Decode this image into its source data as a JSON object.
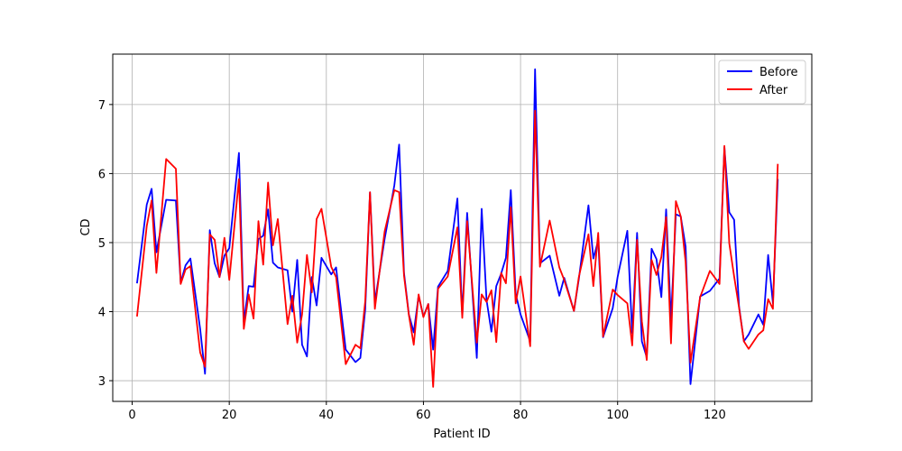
{
  "chart_data": {
    "type": "line",
    "title": "",
    "xlabel": "Patient ID",
    "ylabel": "CD",
    "xlim": [
      -4,
      140
    ],
    "ylim": [
      2.7,
      7.73
    ],
    "xticks": [
      0,
      20,
      40,
      60,
      80,
      100,
      120
    ],
    "yticks": [
      3,
      4,
      5,
      6,
      7
    ],
    "grid": true,
    "legend_position": "top-right",
    "x": [
      1,
      3,
      4,
      5,
      7,
      9,
      10,
      11,
      12,
      14,
      15,
      16,
      17,
      18,
      19,
      20,
      22,
      23,
      24,
      25,
      26,
      27,
      28,
      29,
      30,
      32,
      33,
      34,
      35,
      36,
      37,
      38,
      39,
      41,
      42,
      44,
      46,
      47,
      48,
      49,
      50,
      52,
      54,
      55,
      56,
      57,
      58,
      59,
      60,
      61,
      62,
      63,
      65,
      67,
      68,
      69,
      71,
      72,
      73,
      74,
      75,
      76,
      77,
      78,
      79,
      80,
      82,
      83,
      84,
      86,
      88,
      89,
      91,
      92,
      94,
      95,
      96,
      97,
      99,
      100,
      102,
      103,
      104,
      105,
      106,
      107,
      108,
      109,
      110,
      111,
      112,
      113,
      114,
      115,
      117,
      119,
      121,
      122,
      123,
      124,
      125,
      126,
      127,
      129,
      130,
      131,
      132,
      133
    ],
    "series": [
      {
        "name": "Before",
        "color": "#0000ff",
        "values": [
          4.41,
          5.55,
          5.78,
          4.86,
          5.62,
          5.61,
          4.42,
          4.67,
          4.77,
          3.75,
          3.1,
          5.18,
          4.7,
          4.5,
          4.81,
          4.92,
          6.3,
          3.85,
          4.37,
          4.36,
          5.05,
          5.1,
          5.48,
          4.71,
          4.64,
          4.6,
          4.0,
          4.75,
          3.52,
          3.35,
          4.5,
          4.09,
          4.78,
          4.54,
          4.64,
          3.45,
          3.27,
          3.33,
          4.03,
          5.73,
          4.14,
          5.05,
          5.83,
          6.42,
          4.56,
          3.96,
          3.7,
          4.23,
          3.93,
          4.11,
          3.45,
          4.36,
          4.59,
          5.64,
          3.95,
          5.43,
          3.33,
          5.49,
          4.17,
          3.71,
          4.37,
          4.55,
          4.78,
          5.76,
          4.26,
          3.96,
          3.57,
          7.51,
          4.7,
          4.81,
          4.23,
          4.49,
          4.01,
          4.47,
          5.54,
          4.77,
          5.03,
          3.63,
          4.05,
          4.5,
          5.17,
          3.69,
          5.14,
          3.57,
          3.34,
          4.91,
          4.76,
          4.21,
          5.48,
          3.88,
          5.41,
          5.38,
          4.94,
          2.95,
          4.22,
          4.3,
          4.48,
          6.38,
          5.44,
          5.33,
          4.08,
          3.57,
          3.67,
          3.96,
          3.81,
          4.82,
          4.12,
          5.92
        ]
      },
      {
        "name": "After",
        "color": "#ff0000",
        "values": [
          3.93,
          5.24,
          5.61,
          4.56,
          6.21,
          6.07,
          4.4,
          4.61,
          4.66,
          3.41,
          3.2,
          5.12,
          5.04,
          4.5,
          5.07,
          4.46,
          5.92,
          3.75,
          4.25,
          3.9,
          5.31,
          4.68,
          5.87,
          4.96,
          5.34,
          3.82,
          4.23,
          3.55,
          3.96,
          4.82,
          4.28,
          5.34,
          5.49,
          4.65,
          4.5,
          3.24,
          3.52,
          3.47,
          4.15,
          5.73,
          4.04,
          5.16,
          5.76,
          5.73,
          4.52,
          3.95,
          3.52,
          4.25,
          3.92,
          4.11,
          2.91,
          4.33,
          4.51,
          5.22,
          3.91,
          5.31,
          3.55,
          4.25,
          4.14,
          4.31,
          3.56,
          4.56,
          4.41,
          5.51,
          4.12,
          4.51,
          3.5,
          6.91,
          4.65,
          5.32,
          4.64,
          4.46,
          4.01,
          4.5,
          5.12,
          4.37,
          5.14,
          3.64,
          4.32,
          4.24,
          4.12,
          3.51,
          5.04,
          3.86,
          3.3,
          4.75,
          4.53,
          4.79,
          5.37,
          3.54,
          5.6,
          5.38,
          4.72,
          3.26,
          4.21,
          4.59,
          4.4,
          6.4,
          4.99,
          4.51,
          4.06,
          3.57,
          3.46,
          3.67,
          3.73,
          4.18,
          4.04,
          6.14
        ]
      }
    ]
  }
}
